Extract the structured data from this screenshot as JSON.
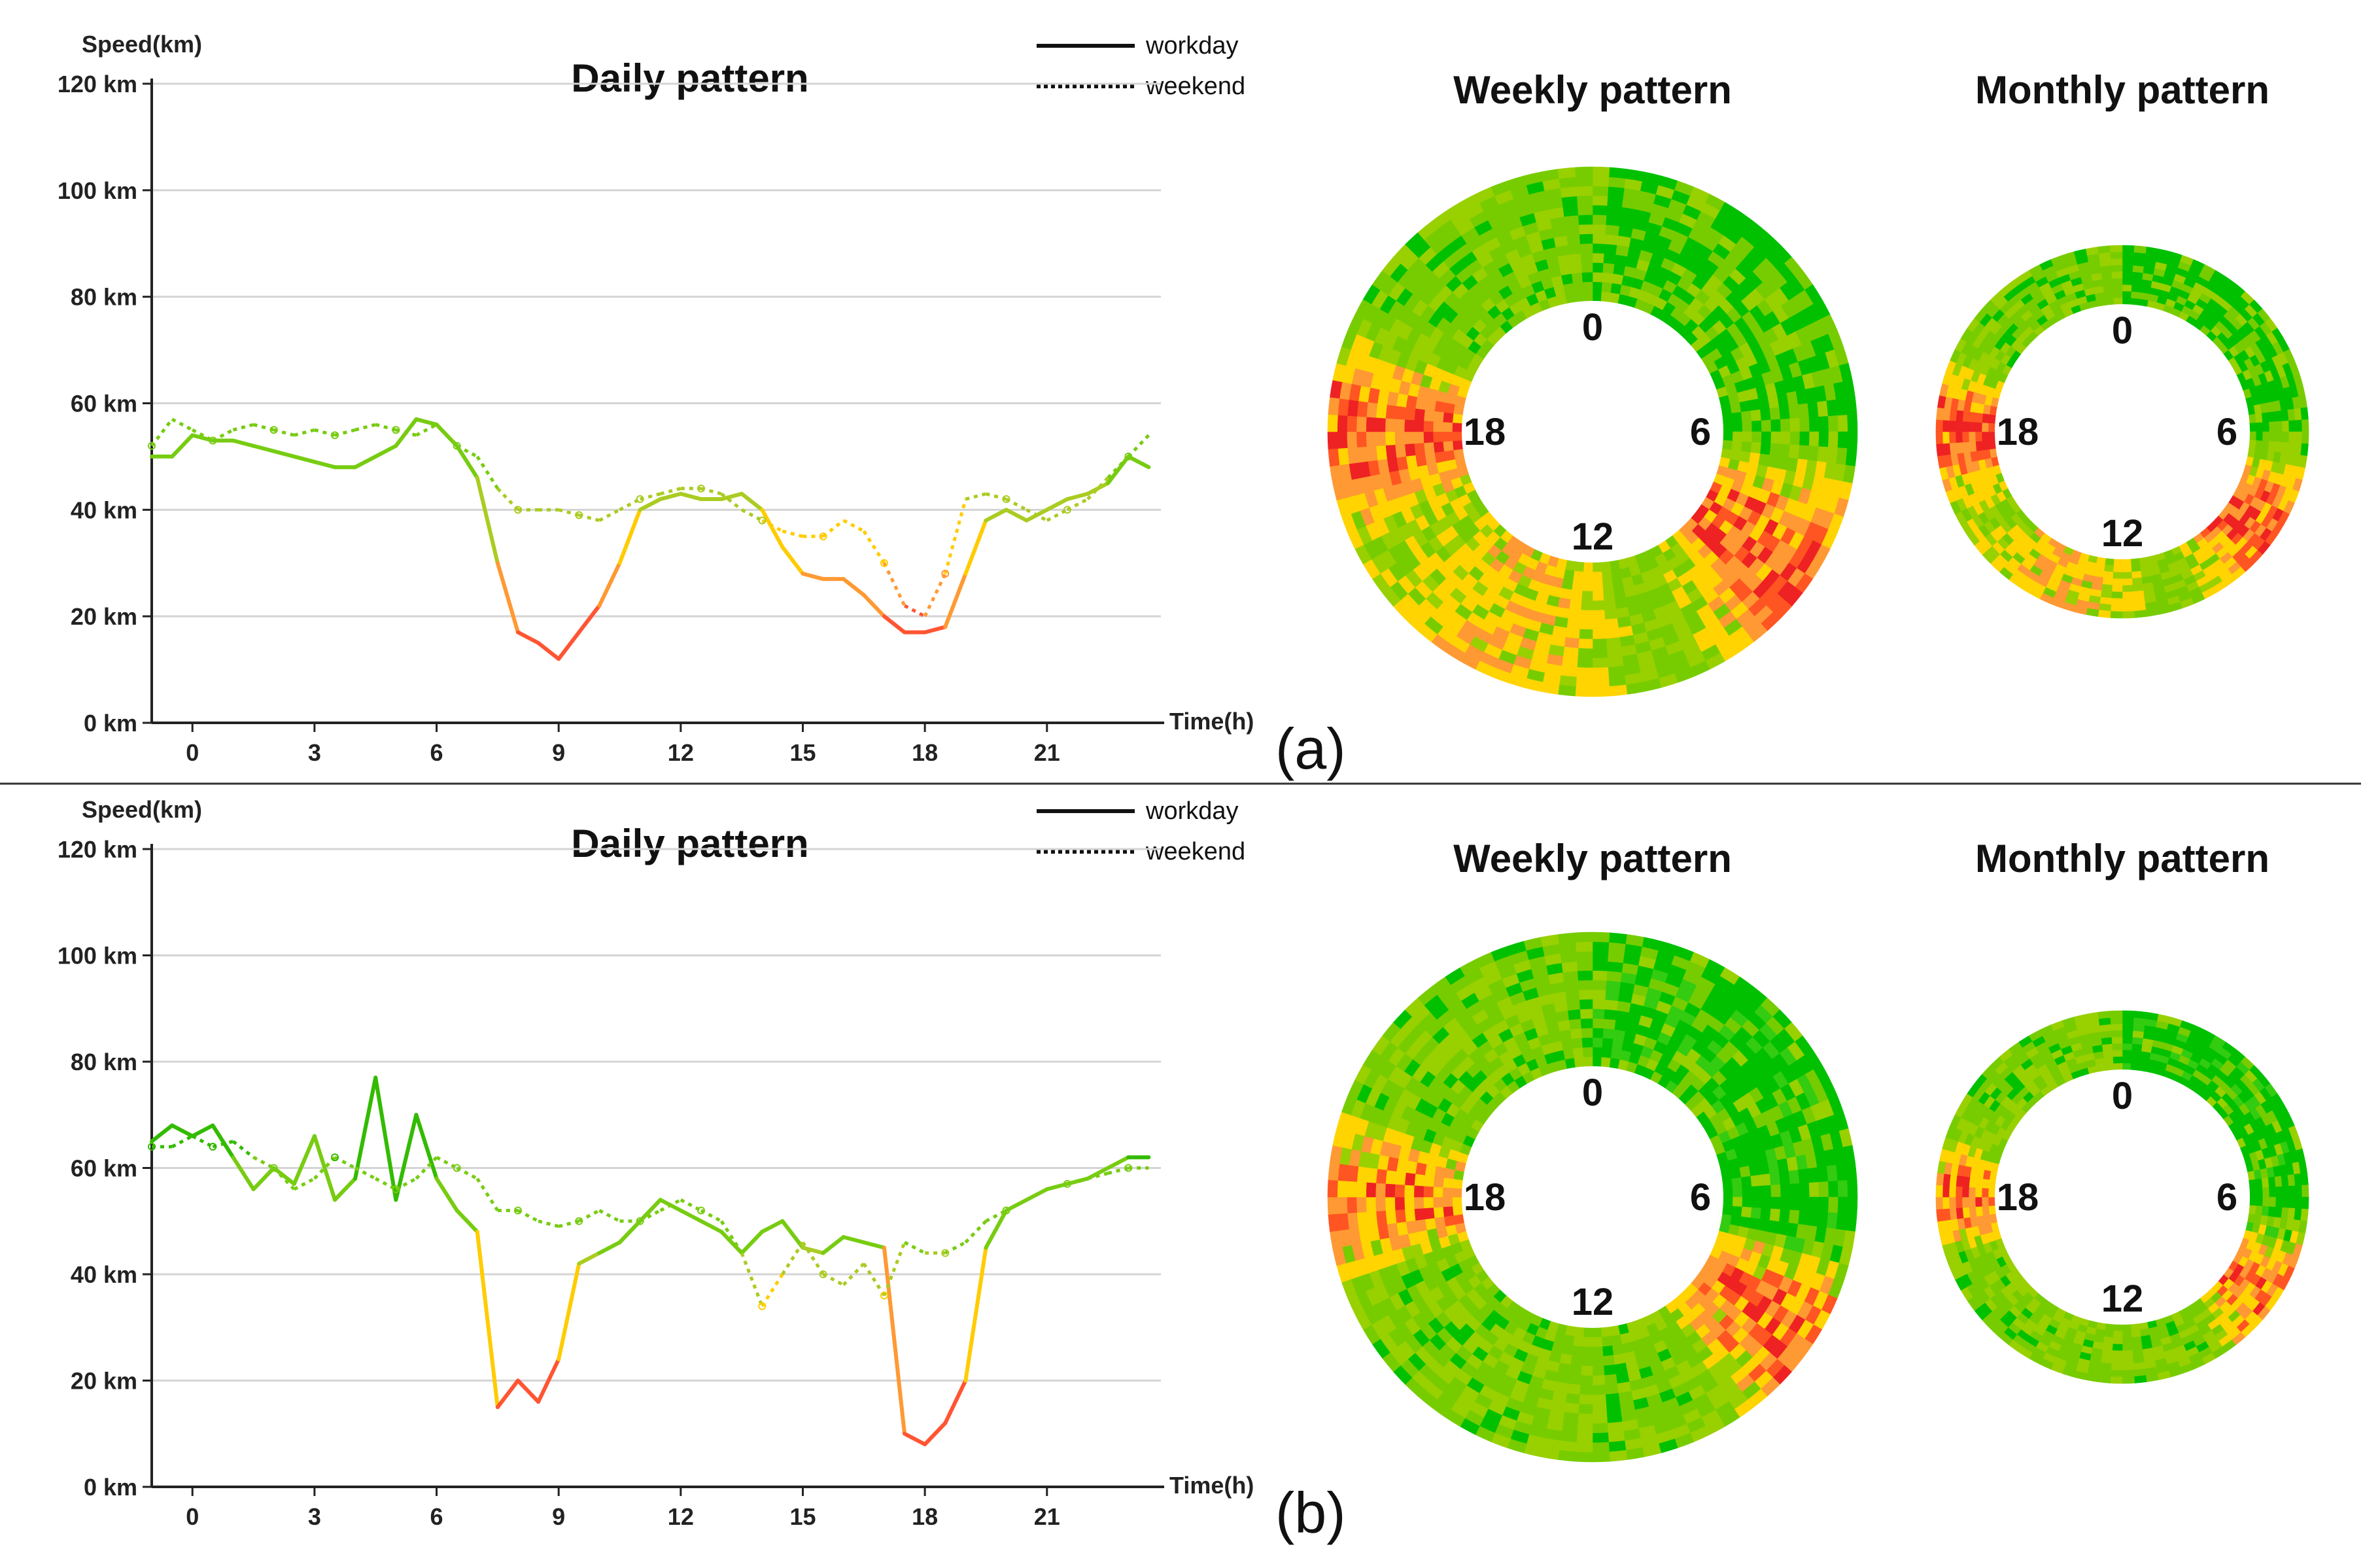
{
  "panels": [
    {
      "tag": "(a)",
      "legend": {
        "solid": "workday",
        "dotted": "weekend"
      },
      "colors": {
        "green": "#66CC00",
        "lime": "#99CC33",
        "yellow": "#FFCC00",
        "orange": "#FF9933",
        "red": "#FF3333"
      },
      "chart_data": {
        "type": "line",
        "title": "Daily pattern",
        "ylabel": "Speed(km)",
        "xlabel": "Time(h)",
        "xlim": [
          -1.0,
          23.8
        ],
        "ylim": [
          0,
          120
        ],
        "yticks": [
          "0 km",
          "20 km",
          "40 km",
          "60 km",
          "80 km",
          "100 km",
          "120 km"
        ],
        "xticks": [
          "0",
          "3",
          "6",
          "9",
          "12",
          "15",
          "18",
          "21"
        ],
        "series": [
          {
            "name": "workday",
            "style": "solid",
            "x": [
              -1,
              -0.5,
              0,
              0.5,
              1,
              1.5,
              2,
              2.5,
              3,
              3.5,
              4,
              4.5,
              5,
              5.5,
              6,
              6.5,
              7,
              7.5,
              8,
              8.5,
              9,
              9.5,
              10,
              10.5,
              11,
              11.5,
              12,
              12.5,
              13,
              13.5,
              14,
              14.5,
              15,
              15.5,
              16,
              16.5,
              17,
              17.5,
              18,
              18.5,
              19,
              19.5,
              20,
              20.5,
              21,
              21.5,
              22,
              22.5,
              23,
              23.5
            ],
            "y": [
              50,
              50,
              54,
              53,
              53,
              52,
              51,
              50,
              49,
              48,
              48,
              50,
              52,
              57,
              56,
              52,
              46,
              30,
              17,
              15,
              12,
              17,
              22,
              30,
              40,
              42,
              43,
              42,
              42,
              43,
              40,
              33,
              28,
              27,
              27,
              24,
              20,
              17,
              17,
              18,
              28,
              38,
              40,
              38,
              40,
              42,
              43,
              45,
              50,
              48
            ]
          },
          {
            "name": "weekend",
            "style": "dotted",
            "x": [
              -1,
              -0.5,
              0,
              0.5,
              1,
              1.5,
              2,
              2.5,
              3,
              3.5,
              4,
              4.5,
              5,
              5.5,
              6,
              6.5,
              7,
              7.5,
              8,
              8.5,
              9,
              9.5,
              10,
              10.5,
              11,
              11.5,
              12,
              12.5,
              13,
              13.5,
              14,
              14.5,
              15,
              15.5,
              16,
              16.5,
              17,
              17.5,
              18,
              18.5,
              19,
              19.5,
              20,
              20.5,
              21,
              21.5,
              22,
              22.5,
              23,
              23.5
            ],
            "y": [
              52,
              57,
              55,
              53,
              55,
              56,
              55,
              54,
              55,
              54,
              55,
              56,
              55,
              54,
              56,
              52,
              50,
              44,
              40,
              40,
              40,
              39,
              38,
              40,
              42,
              43,
              44,
              44,
              43,
              40,
              38,
              36,
              35,
              35,
              38,
              36,
              30,
              22,
              20,
              28,
              42,
              43,
              42,
              40,
              38,
              40,
              42,
              46,
              50,
              54
            ]
          }
        ]
      },
      "rings": [
        {
          "title": "Weekly pattern",
          "labels": [
            "0",
            "6",
            "12",
            "18"
          ]
        },
        {
          "title": "Monthly pattern",
          "labels": [
            "0",
            "6",
            "12",
            "18"
          ]
        }
      ]
    },
    {
      "tag": "(b)",
      "legend": {
        "solid": "workday",
        "dotted": "weekend"
      },
      "chart_data": {
        "type": "line",
        "title": "Daily pattern",
        "ylabel": "Speed(km)",
        "xlabel": "Time(h)",
        "xlim": [
          -1.0,
          23.8
        ],
        "ylim": [
          0,
          120
        ],
        "yticks": [
          "0 km",
          "20 km",
          "40 km",
          "60 km",
          "80 km",
          "100 km",
          "120 km"
        ],
        "xticks": [
          "0",
          "3",
          "6",
          "9",
          "12",
          "15",
          "18",
          "21"
        ],
        "series": [
          {
            "name": "workday",
            "style": "solid",
            "x": [
              -1,
              -0.5,
              0,
              0.5,
              1,
              1.5,
              2,
              2.5,
              3,
              3.5,
              4,
              4.5,
              5,
              5.5,
              6,
              6.5,
              7,
              7.5,
              8,
              8.5,
              9,
              9.5,
              10,
              10.5,
              11,
              11.5,
              12,
              12.5,
              13,
              13.5,
              14,
              14.5,
              15,
              15.5,
              16,
              16.5,
              17,
              17.5,
              18,
              18.5,
              19,
              19.5,
              20,
              20.5,
              21,
              21.5,
              22,
              22.5,
              23,
              23.5
            ],
            "y": [
              65,
              68,
              66,
              68,
              62,
              56,
              60,
              57,
              66,
              54,
              58,
              77,
              54,
              70,
              58,
              52,
              48,
              15,
              20,
              16,
              24,
              42,
              44,
              46,
              50,
              54,
              52,
              50,
              48,
              44,
              48,
              50,
              45,
              44,
              47,
              46,
              45,
              10,
              8,
              12,
              20,
              45,
              52,
              54,
              56,
              57,
              58,
              60,
              62,
              62
            ]
          },
          {
            "name": "weekend",
            "style": "dotted",
            "x": [
              -1,
              -0.5,
              0,
              0.5,
              1,
              1.5,
              2,
              2.5,
              3,
              3.5,
              4,
              4.5,
              5,
              5.5,
              6,
              6.5,
              7,
              7.5,
              8,
              8.5,
              9,
              9.5,
              10,
              10.5,
              11,
              11.5,
              12,
              12.5,
              13,
              13.5,
              14,
              14.5,
              15,
              15.5,
              16,
              16.5,
              17,
              17.5,
              18,
              18.5,
              19,
              19.5,
              20,
              20.5,
              21,
              21.5,
              22,
              22.5,
              23,
              23.5
            ],
            "y": [
              64,
              64,
              66,
              64,
              65,
              62,
              60,
              56,
              58,
              62,
              60,
              58,
              56,
              58,
              62,
              60,
              58,
              52,
              52,
              50,
              49,
              50,
              52,
              50,
              50,
              52,
              54,
              52,
              50,
              44,
              34,
              40,
              46,
              40,
              38,
              42,
              36,
              46,
              44,
              44,
              46,
              50,
              52,
              54,
              56,
              57,
              58,
              59,
              60,
              60
            ]
          }
        ]
      },
      "rings": [
        {
          "title": "Weekly pattern",
          "labels": [
            "0",
            "6",
            "12",
            "18"
          ]
        },
        {
          "title": "Monthly pattern",
          "labels": [
            "0",
            "6",
            "12",
            "18"
          ]
        }
      ]
    }
  ]
}
